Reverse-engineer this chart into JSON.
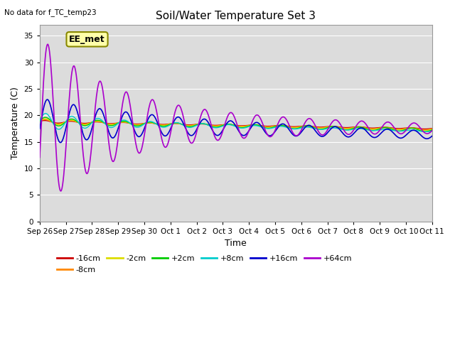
{
  "title": "Soil/Water Temperature Set 3",
  "xlabel": "Time",
  "ylabel": "Temperature (C)",
  "no_data_text": "No data for f_TC_temp23",
  "annotation_text": "EE_met",
  "ylim": [
    0,
    37
  ],
  "yticks": [
    0,
    5,
    10,
    15,
    20,
    25,
    30,
    35
  ],
  "xlim": [
    0,
    15
  ],
  "xtick_labels": [
    "Sep 26",
    "Sep 27",
    "Sep 28",
    "Sep 29",
    "Sep 30",
    "Oct 1",
    "Oct 2",
    "Oct 3",
    "Oct 4",
    "Oct 5",
    "Oct 6",
    "Oct 7",
    "Oct 8",
    "Oct 9",
    "Oct 10",
    "Oct 11"
  ],
  "xtick_positions": [
    0,
    1,
    2,
    3,
    4,
    5,
    6,
    7,
    8,
    9,
    10,
    11,
    12,
    13,
    14,
    15
  ],
  "colors": {
    "-16cm": "#cc0000",
    "-8cm": "#ff8800",
    "-2cm": "#dddd00",
    "+2cm": "#00cc00",
    "+8cm": "#00cccc",
    "+16cm": "#0000cc",
    "+64cm": "#aa00cc"
  },
  "bg_color": "#dcdcdc",
  "fig_bg": "#ffffff",
  "grid_color": "#ffffff",
  "annotation_bg": "#ffffaa",
  "annotation_edge": "#888800"
}
